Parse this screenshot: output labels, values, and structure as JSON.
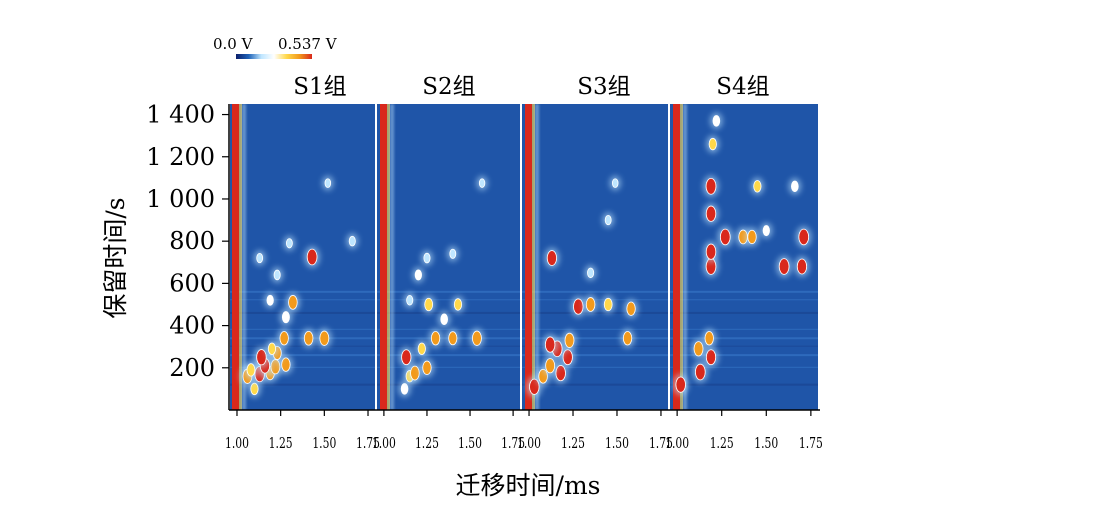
{
  "chart_data": {
    "type": "heatmap",
    "colorbar": {
      "min_label": "0.0 V",
      "max_label": "0.537 V",
      "min": 0.0,
      "max": 0.537,
      "colors": [
        "#0b1f6b",
        "#1f63b8",
        "#bfe6ff",
        "#ffffff",
        "#ffd84a",
        "#f29a1c",
        "#d9281c"
      ]
    },
    "ylabel": "保留时间/s",
    "xlabel": "迁移时间/ms",
    "ylim": [
      0,
      1450
    ],
    "yticks": [
      {
        "value": 1400,
        "label": "1 400"
      },
      {
        "value": 1200,
        "label": "1 200"
      },
      {
        "value": 1000,
        "label": "1 000"
      },
      {
        "value": 800,
        "label": "800"
      },
      {
        "value": 600,
        "label": "600"
      },
      {
        "value": 400,
        "label": "400"
      },
      {
        "value": 200,
        "label": "200"
      }
    ],
    "xlim": [
      0.96,
      1.79
    ],
    "xticks": [
      {
        "value": 1.0,
        "label": "1.00"
      },
      {
        "value": 1.25,
        "label": "1.25"
      },
      {
        "value": 1.5,
        "label": "1.50"
      },
      {
        "value": 1.75,
        "label": "1.75"
      }
    ],
    "background_color": "#1f55a8",
    "rip_color": "#d9281c",
    "panels": [
      {
        "name": "S1组",
        "spots": [
          {
            "x": 1.1,
            "y": 100,
            "v": 0.3
          },
          {
            "x": 1.06,
            "y": 160,
            "v": 0.45
          },
          {
            "x": 1.13,
            "y": 170,
            "v": 0.5
          },
          {
            "x": 1.19,
            "y": 175,
            "v": 0.4
          },
          {
            "x": 1.08,
            "y": 190,
            "v": 0.35
          },
          {
            "x": 1.22,
            "y": 205,
            "v": 0.45
          },
          {
            "x": 1.16,
            "y": 210,
            "v": 0.48
          },
          {
            "x": 1.28,
            "y": 215,
            "v": 0.4
          },
          {
            "x": 1.14,
            "y": 250,
            "v": 0.5
          },
          {
            "x": 1.23,
            "y": 270,
            "v": 0.38
          },
          {
            "x": 1.2,
            "y": 290,
            "v": 0.3
          },
          {
            "x": 1.27,
            "y": 340,
            "v": 0.4
          },
          {
            "x": 1.41,
            "y": 340,
            "v": 0.42
          },
          {
            "x": 1.5,
            "y": 340,
            "v": 0.45
          },
          {
            "x": 1.28,
            "y": 440,
            "v": 0.28
          },
          {
            "x": 1.32,
            "y": 510,
            "v": 0.42
          },
          {
            "x": 1.19,
            "y": 520,
            "v": 0.22
          },
          {
            "x": 1.23,
            "y": 640,
            "v": 0.2
          },
          {
            "x": 1.43,
            "y": 725,
            "v": 0.52
          },
          {
            "x": 1.13,
            "y": 720,
            "v": 0.18
          },
          {
            "x": 1.66,
            "y": 800,
            "v": 0.2
          },
          {
            "x": 1.3,
            "y": 790,
            "v": 0.18
          },
          {
            "x": 1.52,
            "y": 1075,
            "v": 0.15
          }
        ]
      },
      {
        "name": "S2组",
        "spots": [
          {
            "x": 1.12,
            "y": 100,
            "v": 0.25
          },
          {
            "x": 1.15,
            "y": 160,
            "v": 0.3
          },
          {
            "x": 1.18,
            "y": 175,
            "v": 0.42
          },
          {
            "x": 1.25,
            "y": 200,
            "v": 0.4
          },
          {
            "x": 1.13,
            "y": 250,
            "v": 0.48
          },
          {
            "x": 1.22,
            "y": 290,
            "v": 0.3
          },
          {
            "x": 1.3,
            "y": 340,
            "v": 0.4
          },
          {
            "x": 1.4,
            "y": 340,
            "v": 0.38
          },
          {
            "x": 1.54,
            "y": 340,
            "v": 0.45
          },
          {
            "x": 1.35,
            "y": 430,
            "v": 0.25
          },
          {
            "x": 1.26,
            "y": 500,
            "v": 0.35
          },
          {
            "x": 1.43,
            "y": 500,
            "v": 0.3
          },
          {
            "x": 1.15,
            "y": 520,
            "v": 0.2
          },
          {
            "x": 1.2,
            "y": 640,
            "v": 0.22
          },
          {
            "x": 1.25,
            "y": 720,
            "v": 0.2
          },
          {
            "x": 1.4,
            "y": 740,
            "v": 0.18
          },
          {
            "x": 1.57,
            "y": 1075,
            "v": 0.14
          }
        ]
      },
      {
        "name": "S3组",
        "spots": [
          {
            "x": 1.03,
            "y": 110,
            "v": 0.5
          },
          {
            "x": 1.08,
            "y": 160,
            "v": 0.42
          },
          {
            "x": 1.18,
            "y": 175,
            "v": 0.5
          },
          {
            "x": 1.12,
            "y": 210,
            "v": 0.45
          },
          {
            "x": 1.22,
            "y": 250,
            "v": 0.48
          },
          {
            "x": 1.16,
            "y": 290,
            "v": 0.52
          },
          {
            "x": 1.12,
            "y": 310,
            "v": 0.5
          },
          {
            "x": 1.23,
            "y": 330,
            "v": 0.45
          },
          {
            "x": 1.56,
            "y": 340,
            "v": 0.4
          },
          {
            "x": 1.28,
            "y": 490,
            "v": 0.5
          },
          {
            "x": 1.35,
            "y": 500,
            "v": 0.42
          },
          {
            "x": 1.45,
            "y": 500,
            "v": 0.35
          },
          {
            "x": 1.58,
            "y": 480,
            "v": 0.4
          },
          {
            "x": 1.13,
            "y": 720,
            "v": 0.48
          },
          {
            "x": 1.35,
            "y": 650,
            "v": 0.2
          },
          {
            "x": 1.45,
            "y": 900,
            "v": 0.18
          },
          {
            "x": 1.49,
            "y": 1075,
            "v": 0.15
          }
        ]
      },
      {
        "name": "S4组",
        "spots": [
          {
            "x": 1.02,
            "y": 120,
            "v": 0.5
          },
          {
            "x": 1.13,
            "y": 180,
            "v": 0.52
          },
          {
            "x": 1.19,
            "y": 250,
            "v": 0.48
          },
          {
            "x": 1.12,
            "y": 290,
            "v": 0.45
          },
          {
            "x": 1.18,
            "y": 340,
            "v": 0.4
          },
          {
            "x": 1.19,
            "y": 680,
            "v": 0.52
          },
          {
            "x": 1.19,
            "y": 750,
            "v": 0.5
          },
          {
            "x": 1.27,
            "y": 820,
            "v": 0.52
          },
          {
            "x": 1.37,
            "y": 820,
            "v": 0.42
          },
          {
            "x": 1.42,
            "y": 820,
            "v": 0.4
          },
          {
            "x": 1.71,
            "y": 820,
            "v": 0.52
          },
          {
            "x": 1.6,
            "y": 680,
            "v": 0.52
          },
          {
            "x": 1.7,
            "y": 680,
            "v": 0.48
          },
          {
            "x": 1.19,
            "y": 930,
            "v": 0.5
          },
          {
            "x": 1.19,
            "y": 1060,
            "v": 0.53
          },
          {
            "x": 1.45,
            "y": 1060,
            "v": 0.3
          },
          {
            "x": 1.66,
            "y": 1060,
            "v": 0.25
          },
          {
            "x": 1.2,
            "y": 1260,
            "v": 0.3
          },
          {
            "x": 1.22,
            "y": 1370,
            "v": 0.25
          },
          {
            "x": 1.5,
            "y": 850,
            "v": 0.22
          }
        ]
      }
    ]
  }
}
